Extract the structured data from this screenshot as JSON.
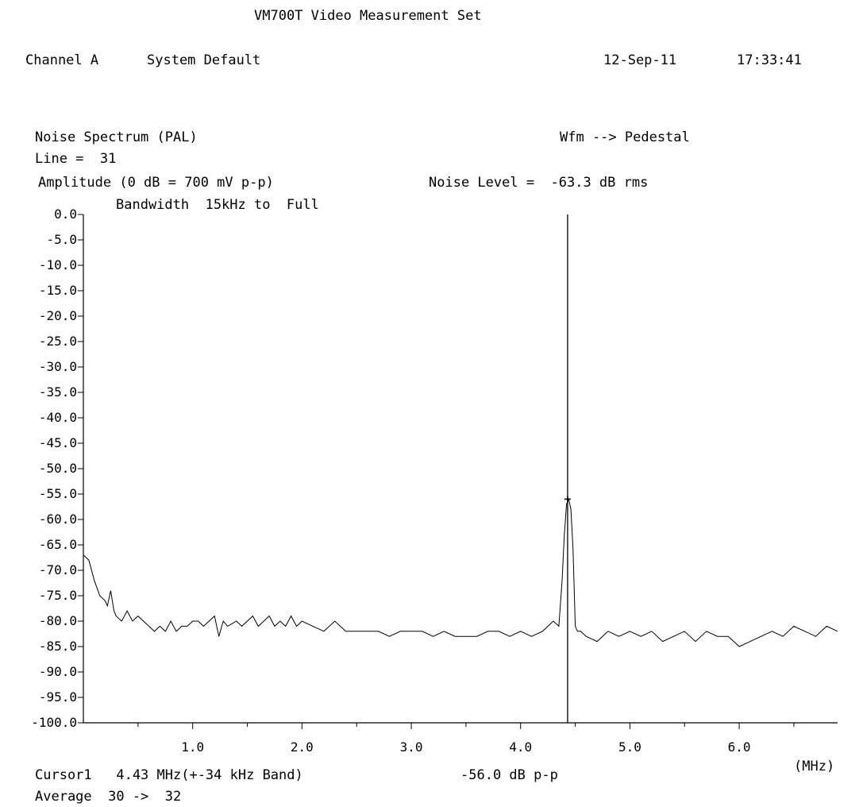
{
  "header": {
    "title": "VM700T Video Measurement Set",
    "channel": "Channel A",
    "setup": "System Default",
    "date": "12-Sep-11",
    "time": "17:33:41"
  },
  "measurement": {
    "name": "Noise Spectrum (PAL)",
    "mode": "Wfm --> Pedestal",
    "line": "Line =  31",
    "amplitude_ref": "Amplitude (0 dB = 700 mV p-p)",
    "noise_level": "Noise Level =  -63.3 dB rms",
    "bandwidth": "Bandwidth  15kHz to  Full"
  },
  "footer": {
    "cursor": "Cursor1   4.43 MHz(+-34 kHz Band)",
    "cursor_level": "-56.0 dB p-p",
    "x_unit": "(MHz)",
    "average": "Average  30 ->  32"
  },
  "chart_data": {
    "type": "line",
    "xlim": [
      0,
      6.9
    ],
    "ylim": [
      -100,
      0
    ],
    "grid": false,
    "x_ticks": [
      {
        "v": 1.0,
        "label": "1.0"
      },
      {
        "v": 2.0,
        "label": "2.0"
      },
      {
        "v": 3.0,
        "label": "3.0"
      },
      {
        "v": 4.0,
        "label": "4.0"
      },
      {
        "v": 5.0,
        "label": "5.0"
      },
      {
        "v": 6.0,
        "label": "6.0"
      }
    ],
    "x_minor_ticks": [
      0.5,
      1.5,
      2.5,
      3.5,
      4.5,
      5.5,
      6.5
    ],
    "y_ticks": [
      {
        "v": 0,
        "label": "0.0"
      },
      {
        "v": -5,
        "label": "-5.0"
      },
      {
        "v": -10,
        "label": "-10.0"
      },
      {
        "v": -15,
        "label": "-15.0"
      },
      {
        "v": -20,
        "label": "-20.0"
      },
      {
        "v": -25,
        "label": "-25.0"
      },
      {
        "v": -30,
        "label": "-30.0"
      },
      {
        "v": -35,
        "label": "-35.0"
      },
      {
        "v": -40,
        "label": "-40.0"
      },
      {
        "v": -45,
        "label": "-45.0"
      },
      {
        "v": -50,
        "label": "-50.0"
      },
      {
        "v": -55,
        "label": "-55.0"
      },
      {
        "v": -60,
        "label": "-60.0"
      },
      {
        "v": -65,
        "label": "-65.0"
      },
      {
        "v": -70,
        "label": "-70.0"
      },
      {
        "v": -75,
        "label": "-75.0"
      },
      {
        "v": -80,
        "label": "-80.0"
      },
      {
        "v": -85,
        "label": "-85.0"
      },
      {
        "v": -90,
        "label": "-90.0"
      },
      {
        "v": -95,
        "label": "-95.0"
      },
      {
        "v": -100,
        "label": "-100.0"
      }
    ],
    "cursor": {
      "x": 4.43,
      "y": -56.0
    },
    "series": [
      {
        "x": [
          0,
          0.05,
          0.1,
          0.15,
          0.2,
          0.22,
          0.25,
          0.28,
          0.3,
          0.35,
          0.4,
          0.45,
          0.5,
          0.55,
          0.6,
          0.65,
          0.7,
          0.75,
          0.8,
          0.85,
          0.9,
          0.95,
          1.0,
          1.05,
          1.1,
          1.15,
          1.2,
          1.24,
          1.28,
          1.32,
          1.4,
          1.45,
          1.5,
          1.55,
          1.6,
          1.65,
          1.7,
          1.75,
          1.8,
          1.85,
          1.9,
          1.95,
          2.0,
          2.1,
          2.2,
          2.3,
          2.4,
          2.5,
          2.6,
          2.7,
          2.8,
          2.9,
          3.0,
          3.1,
          3.2,
          3.3,
          3.4,
          3.5,
          3.6,
          3.7,
          3.8,
          3.9,
          4.0,
          4.1,
          4.2,
          4.3,
          4.35,
          4.38,
          4.4,
          4.42,
          4.44,
          4.46,
          4.48,
          4.5,
          4.52,
          4.55,
          4.6,
          4.7,
          4.8,
          4.9,
          5.0,
          5.1,
          5.2,
          5.3,
          5.4,
          5.5,
          5.6,
          5.7,
          5.8,
          5.9,
          6.0,
          6.1,
          6.2,
          6.3,
          6.4,
          6.5,
          6.6,
          6.7,
          6.8,
          6.9
        ],
        "y": [
          -67,
          -68,
          -72,
          -75,
          -76,
          -77,
          -74,
          -78,
          -79,
          -80,
          -78,
          -80,
          -79,
          -80,
          -81,
          -82,
          -81,
          -82,
          -80,
          -82,
          -81,
          -81,
          -80,
          -80,
          -81,
          -80,
          -79,
          -83,
          -80,
          -81,
          -80,
          -81,
          -80,
          -79,
          -81,
          -80,
          -79,
          -81,
          -80,
          -81,
          -79,
          -81,
          -80,
          -81,
          -82,
          -80,
          -82,
          -82,
          -82,
          -82,
          -83,
          -82,
          -82,
          -82,
          -83,
          -82,
          -83,
          -83,
          -83,
          -82,
          -82,
          -83,
          -82,
          -83,
          -82,
          -80,
          -81,
          -72,
          -63,
          -57,
          -56,
          -58,
          -66,
          -81,
          -82,
          -82,
          -83,
          -84,
          -82,
          -83,
          -82,
          -83,
          -82,
          -84,
          -83,
          -82,
          -84,
          -82,
          -83,
          -83,
          -85,
          -84,
          -83,
          -82,
          -83,
          -81,
          -82,
          -83,
          -81,
          -82
        ]
      }
    ]
  }
}
